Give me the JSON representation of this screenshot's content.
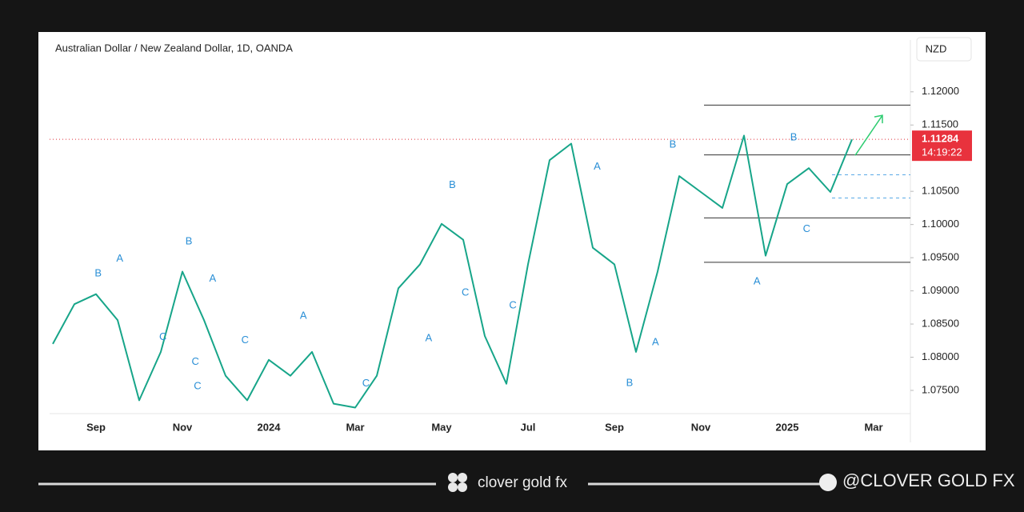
{
  "chart_data": {
    "type": "line",
    "title": "Australian Dollar / New Zealand Dollar, 1D, OANDA",
    "currency": "NZD",
    "categories": [
      null,
      null,
      "Sep",
      null,
      null,
      null,
      "Nov",
      null,
      null,
      null,
      "2024",
      null,
      null,
      null,
      "Mar",
      null,
      null,
      null,
      "May",
      null,
      null,
      null,
      "Jul",
      null,
      null,
      null,
      "Sep",
      null,
      null,
      null,
      "Nov",
      null,
      null,
      null,
      "2025",
      null,
      null,
      null,
      "Mar"
    ],
    "series": [
      {
        "name": "AUD/NZD",
        "color": "#17a589",
        "values": [
          1.082,
          1.088,
          1.0895,
          1.0856,
          1.0735,
          1.0808,
          1.0929,
          1.0856,
          1.0772,
          1.0735,
          1.0796,
          1.0772,
          1.0808,
          1.073,
          1.0724,
          1.0772,
          1.0904,
          1.094,
          1.1001,
          1.0977,
          1.0832,
          1.076,
          1.094,
          1.1097,
          1.1122,
          1.0965,
          1.094,
          1.0808,
          1.0929,
          1.1073,
          1.1049,
          1.1025,
          1.1134,
          1.0953,
          1.1061,
          1.1085,
          1.1049,
          1.11284,
          null
        ]
      }
    ],
    "ylim": [
      1.0715,
      1.1254
    ],
    "yticks": [
      {
        "value": 1.075,
        "label": "1.07500"
      },
      {
        "value": 1.08,
        "label": "1.08000"
      },
      {
        "value": 1.085,
        "label": "1.08500"
      },
      {
        "value": 1.09,
        "label": "1.09000"
      },
      {
        "value": 1.095,
        "label": "1.09500"
      },
      {
        "value": 1.1,
        "label": "1.10000"
      },
      {
        "value": 1.105,
        "label": "1.10500"
      },
      {
        "value": 1.115,
        "label": "1.11500"
      },
      {
        "value": 1.12,
        "label": "1.12000"
      }
    ],
    "last_price": {
      "value": 1.11284,
      "label": "1.11284"
    },
    "countdown": "14:19:22",
    "levels": [
      1.118,
      1.1105,
      1.101,
      1.0943
    ],
    "dashed_levels": [
      1.1075,
      1.104
    ],
    "annotations": [
      {
        "text": "B",
        "x": 2.1,
        "y": 1.0926
      },
      {
        "text": "A",
        "x": 3.1,
        "y": 1.0948
      },
      {
        "text": "C",
        "x": 5.1,
        "y": 1.083
      },
      {
        "text": "B",
        "x": 6.3,
        "y": 1.0974
      },
      {
        "text": "A",
        "x": 7.4,
        "y": 1.0918
      },
      {
        "text": "C",
        "x": 6.6,
        "y": 1.0793
      },
      {
        "text": "C",
        "x": 6.7,
        "y": 1.0756
      },
      {
        "text": "C",
        "x": 8.9,
        "y": 1.0825
      },
      {
        "text": "A",
        "x": 11.6,
        "y": 1.0862
      },
      {
        "text": "C",
        "x": 14.5,
        "y": 1.076
      },
      {
        "text": "A",
        "x": 17.4,
        "y": 1.0828
      },
      {
        "text": "B",
        "x": 18.5,
        "y": 1.1059
      },
      {
        "text": "C",
        "x": 19.1,
        "y": 1.0897
      },
      {
        "text": "C",
        "x": 21.3,
        "y": 1.0878
      },
      {
        "text": "A",
        "x": 25.2,
        "y": 1.1087
      },
      {
        "text": "B",
        "x": 26.7,
        "y": 1.0761
      },
      {
        "text": "A",
        "x": 27.9,
        "y": 1.0822
      },
      {
        "text": "B",
        "x": 28.7,
        "y": 1.112
      },
      {
        "text": "A",
        "x": 32.6,
        "y": 1.0914
      },
      {
        "text": "B",
        "x": 34.3,
        "y": 1.1131
      },
      {
        "text": "C",
        "x": 34.9,
        "y": 1.0993
      }
    ],
    "grid": false
  },
  "footer": {
    "brand": "clover gold fx",
    "handle": "@CLOVER GOLD FX"
  }
}
